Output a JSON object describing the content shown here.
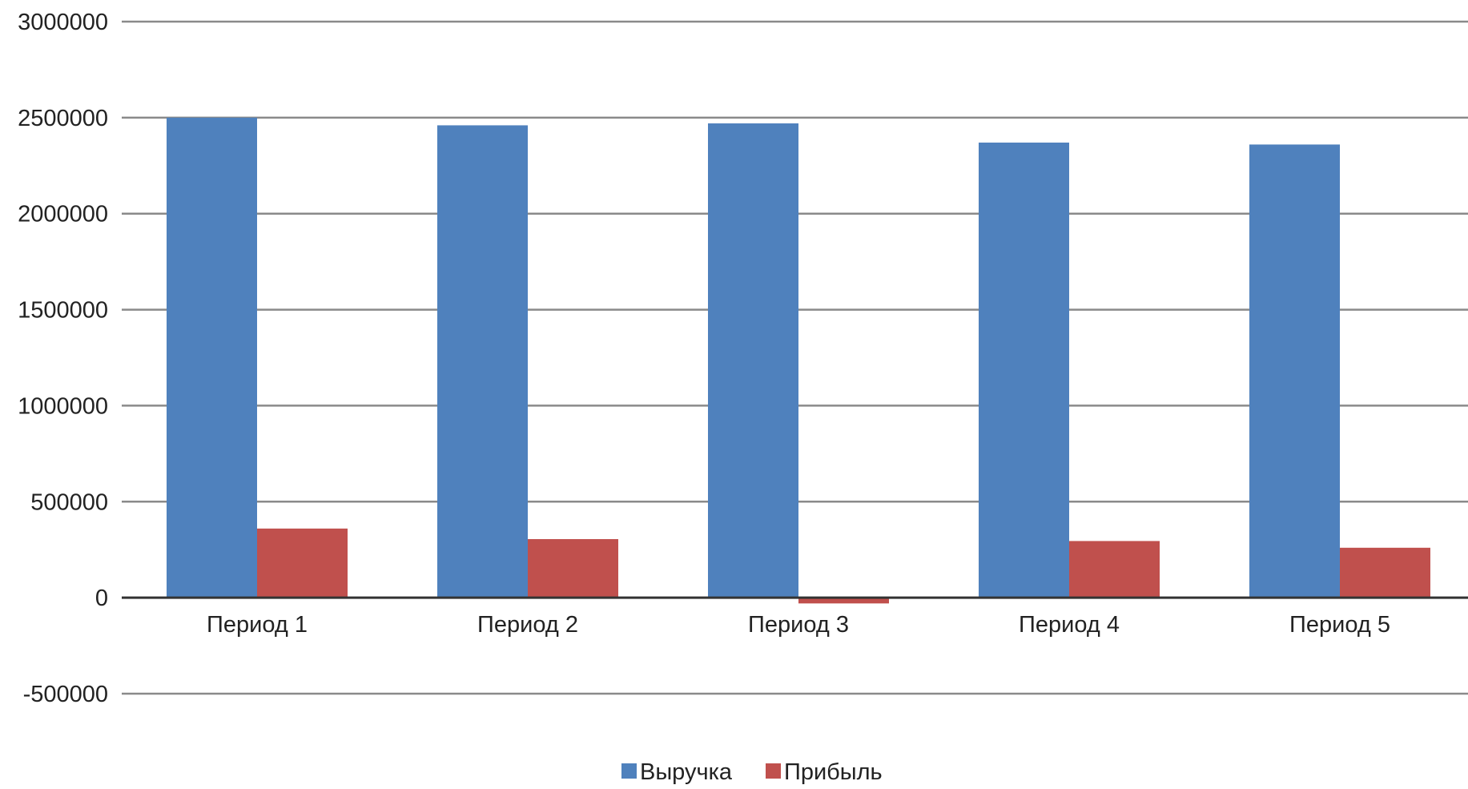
{
  "chart_data": {
    "type": "bar",
    "title": "",
    "xlabel": "",
    "ylabel": "",
    "categories": [
      "Период 1",
      "Период 2",
      "Период 3",
      "Период 4",
      "Период 5"
    ],
    "series": [
      {
        "name": "Выручка",
        "color": "#4f81bd",
        "values": [
          2500000,
          2460000,
          2470000,
          2370000,
          2360000
        ]
      },
      {
        "name": "Прибыль",
        "color": "#c0504d",
        "values": [
          360000,
          305000,
          -30000,
          295000,
          260000
        ]
      }
    ],
    "ylim": [
      -500000,
      3000000
    ],
    "yticks": [
      3000000,
      2500000,
      2000000,
      1500000,
      1000000,
      500000,
      0,
      -500000
    ],
    "ytick_labels": [
      "3000000",
      "2500000",
      "2000000",
      "1500000",
      "1000000",
      "500000",
      "0",
      "-500000"
    ],
    "grid": true,
    "legend_position": "bottom"
  }
}
